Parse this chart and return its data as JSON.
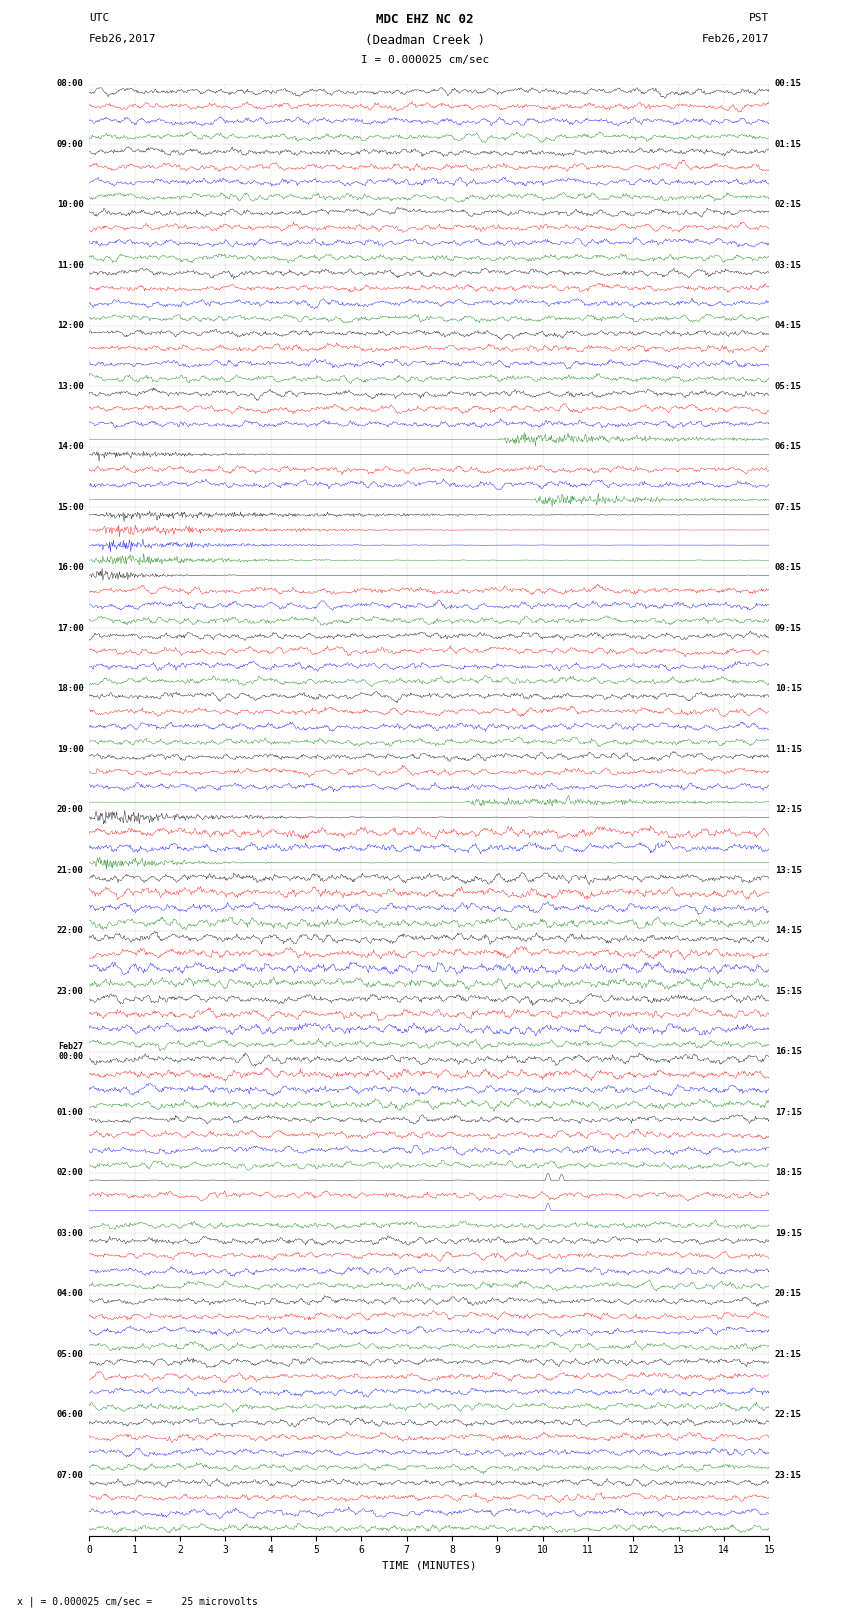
{
  "title_line1": "MDC EHZ NC 02",
  "title_line2": "(Deadman Creek )",
  "title_scale": "I = 0.000025 cm/sec",
  "left_label": "UTC",
  "left_date": "Feb26,2017",
  "right_label": "PST",
  "right_date": "Feb26,2017",
  "xlabel": "TIME (MINUTES)",
  "bottom_note": "x | = 0.000025 cm/sec =     25 microvolts",
  "utc_hour_labels": [
    "08:00",
    "09:00",
    "10:00",
    "11:00",
    "12:00",
    "13:00",
    "14:00",
    "15:00",
    "16:00",
    "17:00",
    "18:00",
    "19:00",
    "20:00",
    "21:00",
    "22:00",
    "23:00",
    "Feb27\n00:00",
    "01:00",
    "02:00",
    "03:00",
    "04:00",
    "05:00",
    "06:00",
    "07:00"
  ],
  "pst_hour_labels": [
    "00:15",
    "01:15",
    "02:15",
    "03:15",
    "04:15",
    "05:15",
    "06:15",
    "07:15",
    "08:15",
    "09:15",
    "10:15",
    "11:15",
    "12:15",
    "13:15",
    "14:15",
    "15:15",
    "16:15",
    "17:15",
    "18:15",
    "19:15",
    "20:15",
    "21:15",
    "22:15",
    "23:15"
  ],
  "trace_colors": [
    "black",
    "red",
    "blue",
    "green"
  ],
  "n_rows": 24,
  "traces_per_row": 4,
  "minutes": 15,
  "fig_width": 8.5,
  "fig_height": 16.13,
  "background_color": "white"
}
